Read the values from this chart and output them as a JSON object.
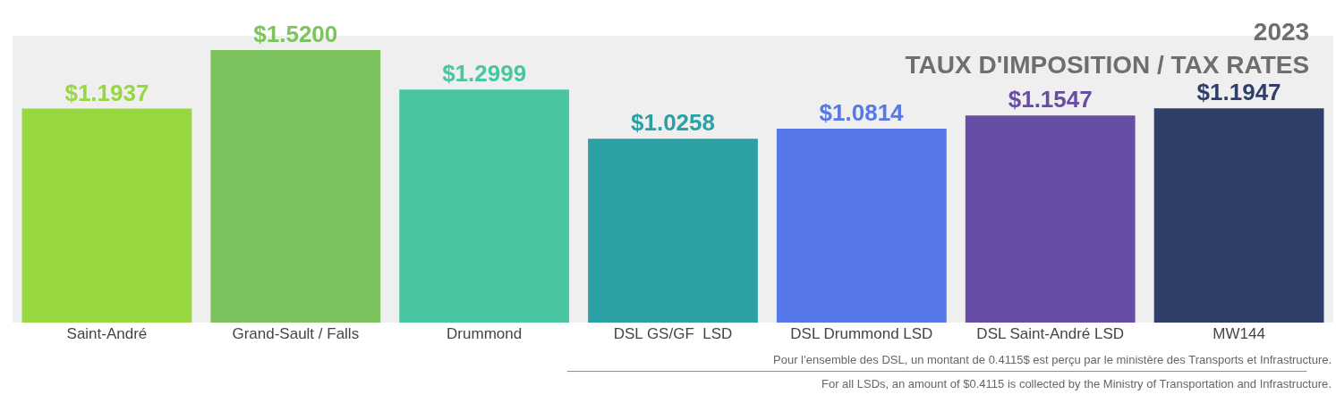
{
  "chart_data": {
    "type": "bar",
    "title": "2023",
    "subtitle": "TAUX D'IMPOSITION / TAX RATES",
    "categories": [
      "Saint-André",
      "Grand-Sault / Falls",
      "Drummond",
      "DSL GS/GF  LSD",
      "DSL Drummond LSD",
      "DSL Saint-André LSD",
      "MW144"
    ],
    "values": [
      1.1937,
      1.52,
      1.2999,
      1.0258,
      1.0814,
      1.1547,
      1.1947
    ],
    "value_labels": [
      "$1.1937",
      "$1.5200",
      "$1.2999",
      "$1.0258",
      "$1.0814",
      "$1.1547",
      "$1.1947"
    ],
    "colors": [
      "#8fd630",
      "#72bf50",
      "#38c29a",
      "#1a9a9e",
      "#4a6de8",
      "#5b3fa0",
      "#1f2f5e"
    ],
    "tick_labels": "x",
    "grid": false,
    "annotations": [
      "Pour l’ensemble des DSL, un montant de 0.4115$ est perçu par le ministère des Transports et Infrastructure.",
      "For all LSDs, an amount of $0.4115 is collected by the Ministry of Transportation and Infrastructure."
    ]
  }
}
